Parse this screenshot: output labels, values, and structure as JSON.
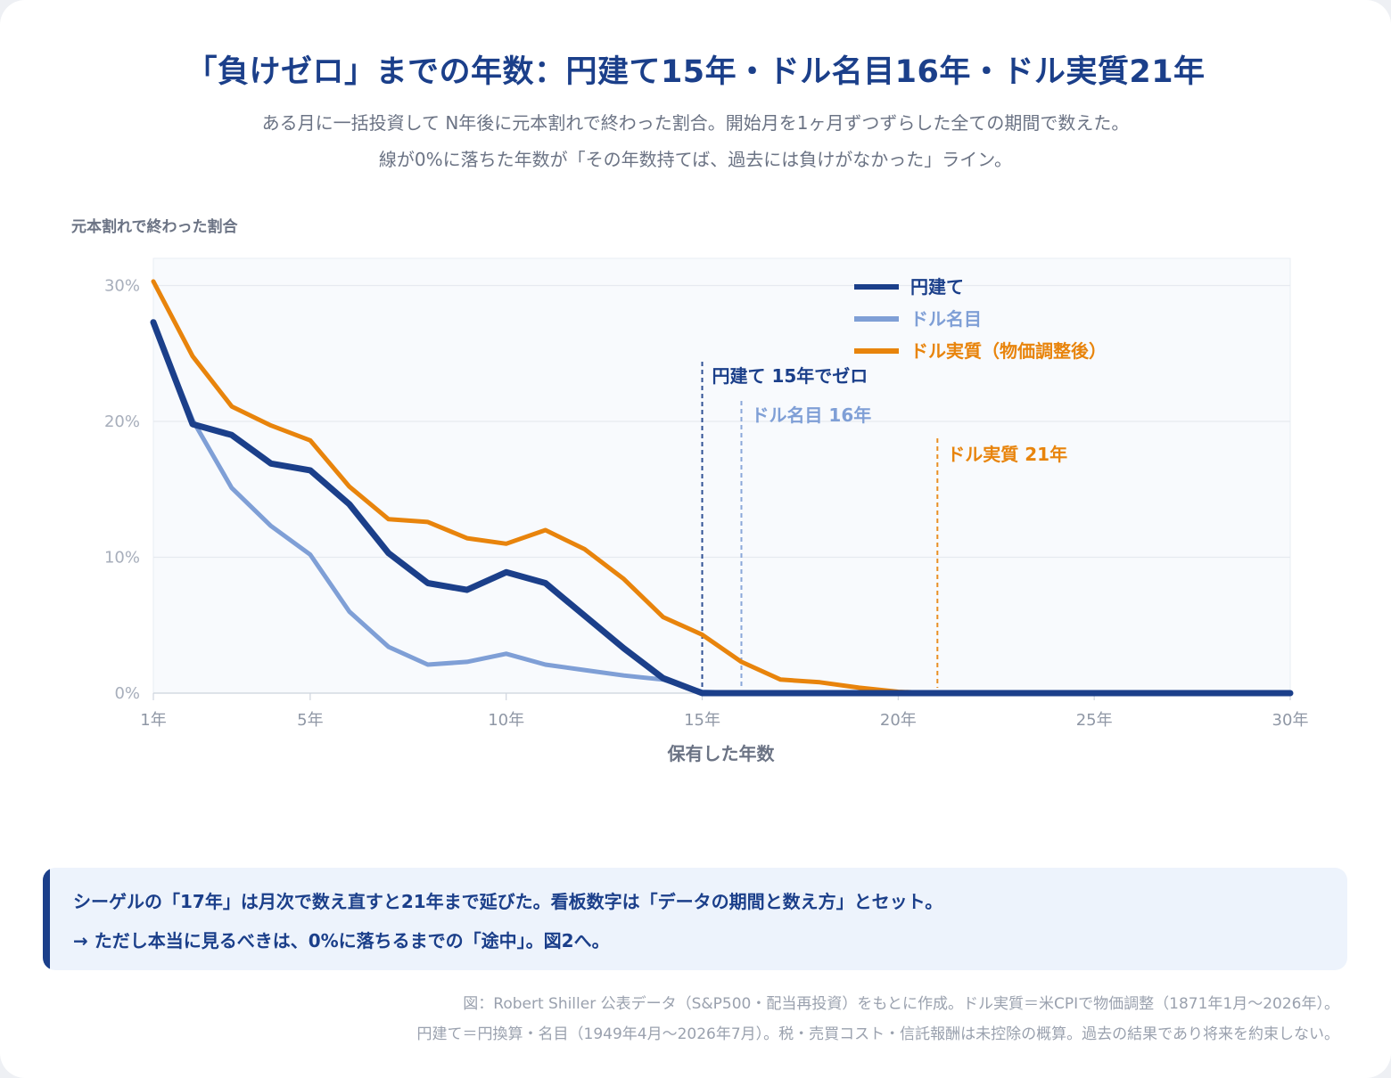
{
  "title": "「負けゼロ」までの年数：円建て15年・ドル名目16年・ドル実質21年",
  "subtitle_lines": [
    "ある月に一括投資して N年後に元本割れで終わった割合。開始月を1ヶ月ずつずらした全ての期間で数えた。",
    "線が0%に落ちた年数が「その年数持てば、過去には負けがなかった」ライン。"
  ],
  "colors": {
    "yen": "#1b3f8a",
    "usd_nominal": "#7f9fd6",
    "usd_real": "#e8840c",
    "plot_bg": "#f8fafd",
    "grid": "#e6eaf0"
  },
  "chart_data": {
    "type": "line",
    "ylabel": "元本割れで終わった割合",
    "xlabel": "保有した年数",
    "xlim": [
      1,
      30
    ],
    "ylim": [
      0,
      32
    ],
    "y_ticks": [
      0,
      10,
      20,
      30
    ],
    "y_tick_labels": [
      "0%",
      "10%",
      "20%",
      "30%"
    ],
    "x_ticks": [
      1,
      5,
      10,
      15,
      20,
      25,
      30
    ],
    "x_tick_labels": [
      "1年",
      "5年",
      "10年",
      "15年",
      "20年",
      "25年",
      "30年"
    ],
    "grid": "horizontal",
    "legend": "top-right",
    "x": [
      1,
      2,
      3,
      4,
      5,
      6,
      7,
      8,
      9,
      10,
      11,
      12,
      13,
      14,
      15,
      16,
      17,
      18,
      19,
      20,
      21,
      22,
      23,
      24,
      25,
      26,
      27,
      28,
      29,
      30
    ],
    "series": [
      {
        "name": "円建て",
        "color": "#1b3f8a",
        "values": [
          27.3,
          19.8,
          19.0,
          16.9,
          16.4,
          13.9,
          10.3,
          8.1,
          7.6,
          8.9,
          8.1,
          5.7,
          3.3,
          1.1,
          0,
          0,
          0,
          0,
          0,
          0,
          0,
          0,
          0,
          0,
          0,
          0,
          0,
          0,
          0,
          0
        ]
      },
      {
        "name": "ドル名目",
        "color": "#7f9fd6",
        "values": [
          27.2,
          20.1,
          15.1,
          12.3,
          10.2,
          6.0,
          3.4,
          2.1,
          2.3,
          2.9,
          2.1,
          1.7,
          1.3,
          1.0,
          0.1,
          0,
          0,
          0,
          0,
          0,
          0,
          0,
          0,
          0,
          0,
          0,
          0,
          0,
          0,
          0
        ]
      },
      {
        "name": "ドル実質（物価調整後）",
        "color": "#e8840c",
        "values": [
          30.3,
          24.8,
          21.1,
          19.7,
          18.6,
          15.2,
          12.8,
          12.6,
          11.4,
          11.0,
          12.0,
          10.6,
          8.4,
          5.6,
          4.3,
          2.3,
          1.0,
          0.8,
          0.4,
          0.1,
          0,
          0,
          0,
          0,
          0,
          0,
          0,
          0,
          0,
          0
        ]
      }
    ],
    "markers": [
      {
        "x": 15,
        "label": "円建て 15年でゼロ",
        "color": "#1b3f8a"
      },
      {
        "x": 16,
        "label": "ドル名目 16年",
        "color": "#7f9fd6"
      },
      {
        "x": 21,
        "label": "ドル実質 21年",
        "color": "#e8840c"
      }
    ]
  },
  "note": {
    "line1": "シーゲルの「17年」は月次で数え直すと21年まで延びた。看板数字は「データの期間と数え方」とセット。",
    "line2": "→ ただし本当に見るべきは、0%に落ちるまでの「途中」。図2へ。"
  },
  "source_lines": [
    "図：Robert Shiller 公表データ（S&P500・配当再投資）をもとに作成。ドル実質＝米CPIで物価調整（1871年1月〜2026年）。",
    "円建て＝円換算・名目（1949年4月〜2026年7月）。税・売買コスト・信託報酬は未控除の概算。過去の結果であり将来を約束しない。"
  ]
}
